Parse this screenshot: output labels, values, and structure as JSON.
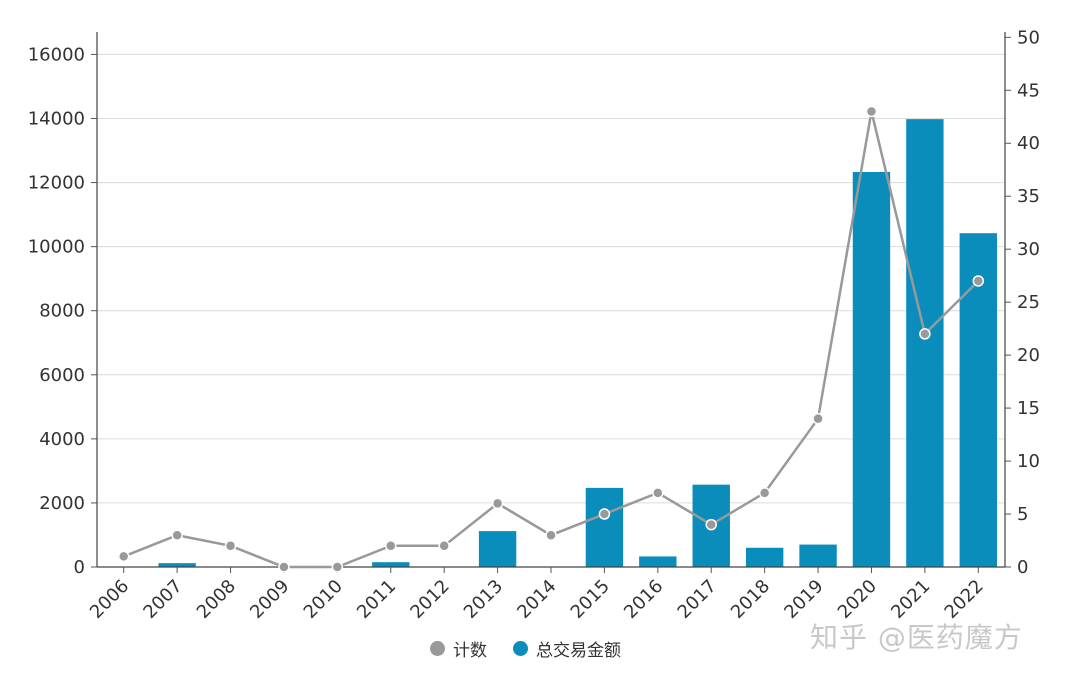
{
  "chart_data": {
    "type": "bar",
    "categories": [
      "2006",
      "2007",
      "2008",
      "2009",
      "2010",
      "2011",
      "2012",
      "2013",
      "2014",
      "2015",
      "2016",
      "2017",
      "2018",
      "2019",
      "2020",
      "2021",
      "2022"
    ],
    "series": [
      {
        "name": "总交易金额",
        "type": "bar",
        "axis": "left",
        "color": "#0a8dbb",
        "values": [
          0,
          120,
          0,
          0,
          0,
          150,
          0,
          1120,
          0,
          2470,
          330,
          2570,
          600,
          700,
          12330,
          13980,
          10420
        ]
      },
      {
        "name": "计数",
        "type": "line",
        "axis": "right",
        "color": "#999999",
        "values": [
          1,
          3,
          2,
          0,
          0,
          2,
          2,
          6,
          3,
          5,
          7,
          4,
          7,
          14,
          43,
          22,
          27
        ]
      }
    ],
    "y_left": {
      "min": 0,
      "max": 16700,
      "ticks": [
        0,
        2000,
        4000,
        6000,
        8000,
        10000,
        12000,
        14000,
        16000
      ]
    },
    "y_right": {
      "min": 0,
      "max": 50.5,
      "ticks": [
        0,
        5,
        10,
        15,
        20,
        25,
        30,
        35,
        40,
        45,
        50
      ]
    },
    "grid": true,
    "legend_position": "bottom",
    "title": "",
    "xlabel": "",
    "ylabel": ""
  },
  "legend": {
    "count_label": "计数",
    "amount_label": "总交易金额"
  },
  "watermark": "知乎 @医药魔方"
}
